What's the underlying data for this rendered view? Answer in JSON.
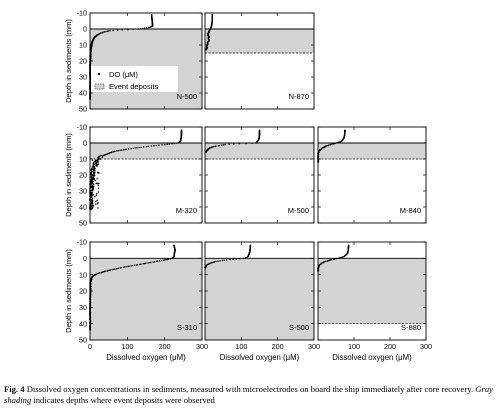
{
  "chart_data": {
    "type": "scatter",
    "ylabel": "Depth in sediments (mm)",
    "xlabel": "Dissolved oxygen (μM)",
    "xlim": [
      0,
      300
    ],
    "ylim_top_row": [
      -10,
      50
    ],
    "ylim_other_rows": [
      -10,
      50
    ],
    "x_ticks": [
      "0",
      "100",
      "200",
      "300"
    ],
    "y_ticks_top_row": [
      "-10",
      "0",
      "10",
      "20",
      "30",
      "40",
      "50"
    ],
    "y_ticks_other_rows": [
      "-10",
      "0",
      "10",
      "20",
      "30",
      "40",
      "50"
    ],
    "legend": {
      "items": [
        {
          "label": "DO (μM)",
          "symbol": "dot"
        },
        {
          "label": "Event deposits",
          "symbol": "gray-box"
        }
      ],
      "placement": "panel N-500, left middle"
    },
    "shading_color": "#d3d3d3",
    "panels": [
      {
        "id": "N-500",
        "row": 0,
        "col": 0,
        "label": "N-500",
        "event_depth": [
          0,
          50
        ],
        "profile": [
          [
            -9,
            165
          ],
          [
            -4,
            167
          ],
          [
            -2,
            168
          ],
          [
            -1,
            160
          ],
          [
            0,
            130
          ],
          [
            0.5,
            90
          ],
          [
            1,
            55
          ],
          [
            2,
            35
          ],
          [
            3,
            25
          ],
          [
            4,
            18
          ],
          [
            5,
            13
          ],
          [
            6,
            10
          ],
          [
            7,
            8
          ],
          [
            8,
            6
          ],
          [
            9,
            5
          ],
          [
            10,
            4
          ],
          [
            12,
            3
          ],
          [
            14,
            2
          ],
          [
            17,
            1
          ],
          [
            20,
            1
          ],
          [
            25,
            0
          ],
          [
            30,
            0
          ],
          [
            36,
            0
          ],
          [
            40,
            0
          ],
          [
            44,
            0
          ]
        ]
      },
      {
        "id": "N-870",
        "row": 0,
        "col": 1,
        "label": "N-870",
        "event_depth": [
          0,
          15
        ],
        "profile": [
          [
            -9,
            20
          ],
          [
            -5,
            20
          ],
          [
            -2,
            18
          ],
          [
            0,
            15
          ],
          [
            1,
            12
          ],
          [
            2,
            10
          ],
          [
            3,
            8
          ],
          [
            4,
            9
          ],
          [
            5,
            11
          ],
          [
            6,
            9
          ],
          [
            7,
            12
          ],
          [
            8,
            8
          ],
          [
            10,
            6
          ],
          [
            12,
            5
          ],
          [
            13,
            4
          ]
        ]
      },
      {
        "id": "M-320",
        "row": 1,
        "col": 0,
        "label": "M-320",
        "event_depth": [
          0,
          10
        ],
        "profile": [
          [
            -8,
            245
          ],
          [
            -5,
            245
          ],
          [
            -3,
            244
          ],
          [
            -1,
            242
          ],
          [
            0,
            236
          ],
          [
            1,
            200
          ],
          [
            2,
            160
          ],
          [
            3,
            125
          ],
          [
            4,
            95
          ],
          [
            5,
            70
          ],
          [
            6,
            55
          ],
          [
            7,
            45
          ],
          [
            8,
            35
          ],
          [
            9,
            28
          ],
          [
            10,
            22
          ],
          [
            12,
            16
          ],
          [
            14,
            12
          ],
          [
            16,
            10
          ],
          [
            18,
            8
          ],
          [
            20,
            7
          ],
          [
            22,
            6
          ],
          [
            24,
            6
          ],
          [
            26,
            5
          ],
          [
            28,
            4
          ],
          [
            30,
            4
          ],
          [
            32,
            3
          ],
          [
            34,
            3
          ],
          [
            36,
            3
          ],
          [
            38,
            2
          ],
          [
            40,
            2
          ],
          [
            42,
            2
          ]
        ]
      },
      {
        "id": "M-500",
        "row": 1,
        "col": 1,
        "label": "M-500",
        "event_depth": [
          0,
          10
        ],
        "profile": [
          [
            -8,
            150
          ],
          [
            -5,
            150
          ],
          [
            -2,
            148
          ],
          [
            0,
            140
          ],
          [
            0.5,
            90
          ],
          [
            1,
            55
          ],
          [
            2,
            28
          ],
          [
            3,
            14
          ],
          [
            4,
            8
          ],
          [
            5,
            4
          ],
          [
            6,
            2
          ]
        ]
      },
      {
        "id": "M-840",
        "row": 1,
        "col": 2,
        "label": "M-840",
        "event_depth": [
          0,
          10
        ],
        "profile": [
          [
            -8,
            75
          ],
          [
            -5,
            74
          ],
          [
            -3,
            72
          ],
          [
            -1,
            65
          ],
          [
            0,
            50
          ],
          [
            1,
            35
          ],
          [
            2,
            22
          ],
          [
            3,
            13
          ],
          [
            4,
            7
          ],
          [
            5,
            3
          ],
          [
            6,
            1
          ],
          [
            7,
            0
          ],
          [
            9,
            0
          ],
          [
            12,
            0
          ]
        ]
      },
      {
        "id": "S-310",
        "row": 2,
        "col": 0,
        "label": "S-310",
        "event_depth": [
          0,
          50
        ],
        "profile": [
          [
            -8,
            225
          ],
          [
            -5,
            228
          ],
          [
            -3,
            226
          ],
          [
            -1,
            225
          ],
          [
            0,
            220
          ],
          [
            1,
            200
          ],
          [
            2,
            175
          ],
          [
            3,
            150
          ],
          [
            4,
            125
          ],
          [
            5,
            100
          ],
          [
            6,
            78
          ],
          [
            7,
            58
          ],
          [
            8,
            40
          ],
          [
            9,
            25
          ],
          [
            10,
            14
          ],
          [
            11,
            7
          ],
          [
            12,
            4
          ],
          [
            14,
            2
          ],
          [
            16,
            1
          ],
          [
            20,
            1
          ],
          [
            25,
            0
          ],
          [
            30,
            0
          ],
          [
            35,
            0
          ],
          [
            40,
            0
          ],
          [
            44,
            0
          ]
        ]
      },
      {
        "id": "S-500",
        "row": 2,
        "col": 1,
        "label": "S-500",
        "event_depth": [
          0,
          50
        ],
        "profile": [
          [
            -8,
            125
          ],
          [
            -5,
            124
          ],
          [
            -3,
            122
          ],
          [
            -1,
            118
          ],
          [
            0,
            110
          ],
          [
            0.5,
            85
          ],
          [
            1,
            60
          ],
          [
            1.5,
            42
          ],
          [
            2,
            28
          ],
          [
            3,
            14
          ],
          [
            4,
            6
          ],
          [
            5,
            2
          ],
          [
            6,
            0
          ]
        ]
      },
      {
        "id": "S-880",
        "row": 2,
        "col": 2,
        "label": "S-880",
        "event_depth": [
          0,
          40
        ],
        "profile": [
          [
            -8,
            85
          ],
          [
            -5,
            84
          ],
          [
            -3,
            82
          ],
          [
            -1,
            72
          ],
          [
            0,
            55
          ],
          [
            1,
            35
          ],
          [
            2,
            20
          ],
          [
            3,
            10
          ],
          [
            4,
            5
          ],
          [
            5,
            2
          ],
          [
            6,
            0
          ],
          [
            8,
            0
          ]
        ]
      }
    ]
  },
  "caption": {
    "label": "Fig. 4",
    "text_a": "Dissolved oxygen concentrations in sediments, measured with microelectrodes on board the ship immediately after core recovery.",
    "emphasis": "Gray shading",
    "text_b": "indicates depths where event deposits were observed"
  }
}
